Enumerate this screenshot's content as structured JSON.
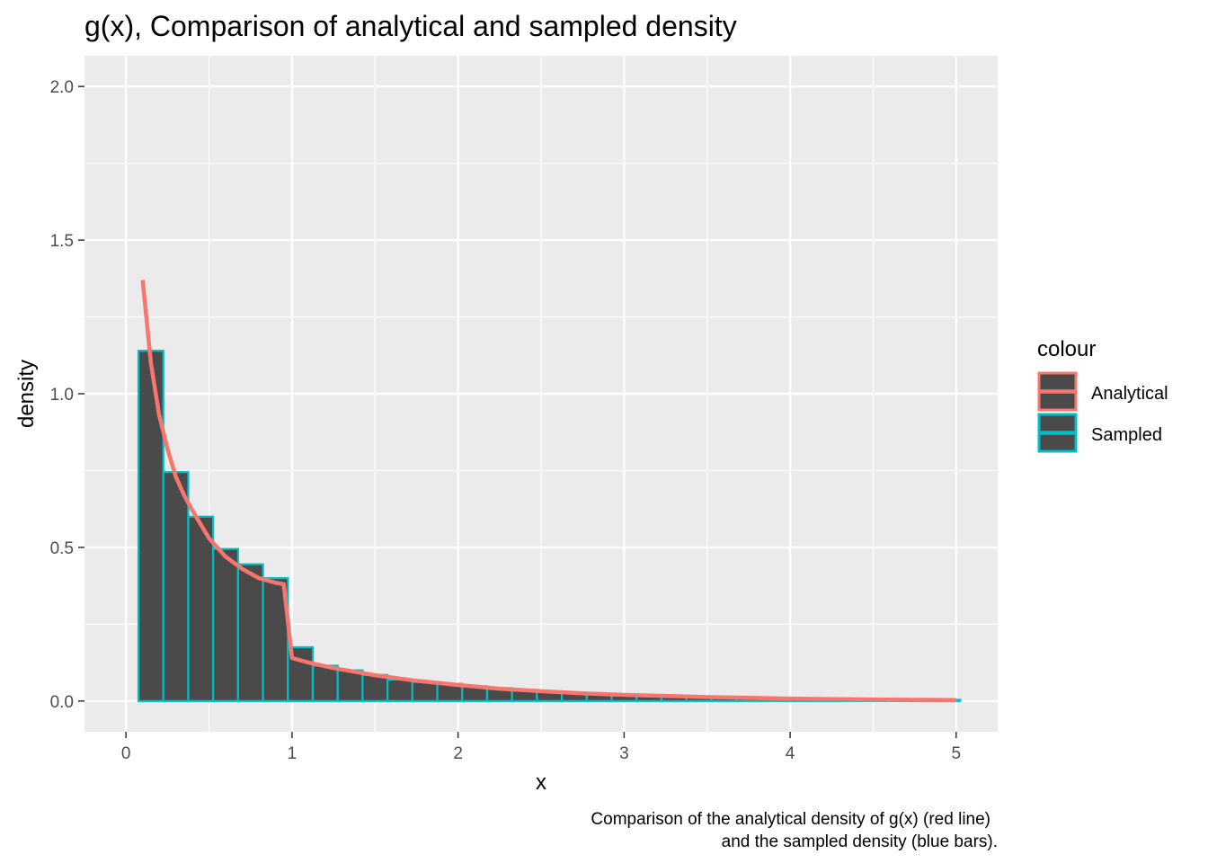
{
  "chart_data": {
    "type": "bar",
    "title": "g(x), Comparison of analytical and sampled density",
    "xlabel": "x",
    "ylabel": "density",
    "caption": [
      "Comparison of the analytical density of g(x) (red line)",
      "and the sampled density (blue bars)."
    ],
    "xlim": [
      -0.25,
      5.25
    ],
    "ylim": [
      -0.1,
      2.1
    ],
    "x_ticks": [
      0,
      1,
      2,
      3,
      4,
      5
    ],
    "x_tick_labels": [
      "0",
      "1",
      "2",
      "3",
      "4",
      "5"
    ],
    "y_ticks": [
      0.0,
      0.5,
      1.0,
      1.5,
      2.0
    ],
    "y_tick_labels": [
      "0.0",
      "0.5",
      "1.0",
      "1.5",
      "2.0"
    ],
    "grid": true,
    "legend": {
      "title": "colour",
      "position": "right",
      "entries": [
        {
          "label": "Analytical",
          "color": "#F8766D"
        },
        {
          "label": "Sampled",
          "color": "#00BFC4"
        }
      ]
    },
    "series": [
      {
        "name": "Sampled",
        "kind": "histogram",
        "fill": "#4a4a4a",
        "outline": "#00BFC4",
        "bin_width": 0.15,
        "bin_start": 0.075,
        "values": [
          1.14,
          0.745,
          0.6,
          0.495,
          0.445,
          0.4,
          0.175,
          0.115,
          0.1,
          0.085,
          0.07,
          0.062,
          0.056,
          0.048,
          0.042,
          0.036,
          0.031,
          0.027,
          0.024,
          0.02,
          0.018,
          0.016,
          0.014,
          0.012,
          0.011,
          0.009,
          0.008,
          0.007,
          0.006,
          0.005,
          0.005,
          0.004,
          0.004
        ]
      },
      {
        "name": "Analytical",
        "kind": "line",
        "color": "#F8766D",
        "x": [
          0.1,
          0.15,
          0.2,
          0.25,
          0.3,
          0.35,
          0.4,
          0.5,
          0.6,
          0.7,
          0.8,
          0.9,
          0.95,
          1.0,
          1.1,
          1.25,
          1.5,
          1.75,
          2.0,
          2.25,
          2.5,
          2.75,
          3.0,
          3.5,
          4.0,
          4.5,
          5.0
        ],
        "y": [
          1.37,
          1.1,
          0.93,
          0.82,
          0.73,
          0.67,
          0.62,
          0.53,
          0.47,
          0.43,
          0.4,
          0.385,
          0.38,
          0.14,
          0.125,
          0.107,
          0.084,
          0.066,
          0.052,
          0.04,
          0.032,
          0.025,
          0.02,
          0.013,
          0.008,
          0.005,
          0.003
        ]
      }
    ]
  }
}
